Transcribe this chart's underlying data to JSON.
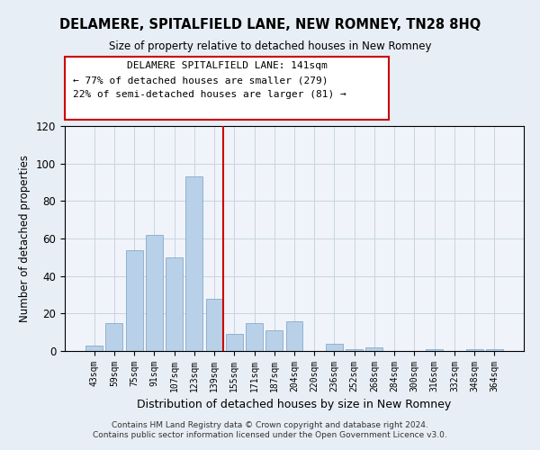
{
  "title": "DELAMERE, SPITALFIELD LANE, NEW ROMNEY, TN28 8HQ",
  "subtitle": "Size of property relative to detached houses in New Romney",
  "xlabel": "Distribution of detached houses by size in New Romney",
  "ylabel": "Number of detached properties",
  "bar_labels": [
    "43sqm",
    "59sqm",
    "75sqm",
    "91sqm",
    "107sqm",
    "123sqm",
    "139sqm",
    "155sqm",
    "171sqm",
    "187sqm",
    "204sqm",
    "220sqm",
    "236sqm",
    "252sqm",
    "268sqm",
    "284sqm",
    "300sqm",
    "316sqm",
    "332sqm",
    "348sqm",
    "364sqm"
  ],
  "bar_values": [
    3,
    15,
    54,
    62,
    50,
    93,
    28,
    9,
    15,
    11,
    16,
    0,
    4,
    1,
    2,
    0,
    0,
    1,
    0,
    1,
    1
  ],
  "bar_color_normal": "#b8d0e8",
  "bar_color_highlight": "#b8d0e8",
  "highlight_index": 6,
  "ylim": [
    0,
    120
  ],
  "yticks": [
    0,
    20,
    40,
    60,
    80,
    100,
    120
  ],
  "annotation_box": {
    "title": "DELAMERE SPITALFIELD LANE: 141sqm",
    "line1": "← 77% of detached houses are smaller (279)",
    "line2": "22% of semi-detached houses are larger (81) →"
  },
  "footer_line1": "Contains HM Land Registry data © Crown copyright and database right 2024.",
  "footer_line2": "Contains public sector information licensed under the Open Government Licence v3.0.",
  "bg_color": "#e8eef5",
  "plot_bg_color": "#f0f4fa"
}
